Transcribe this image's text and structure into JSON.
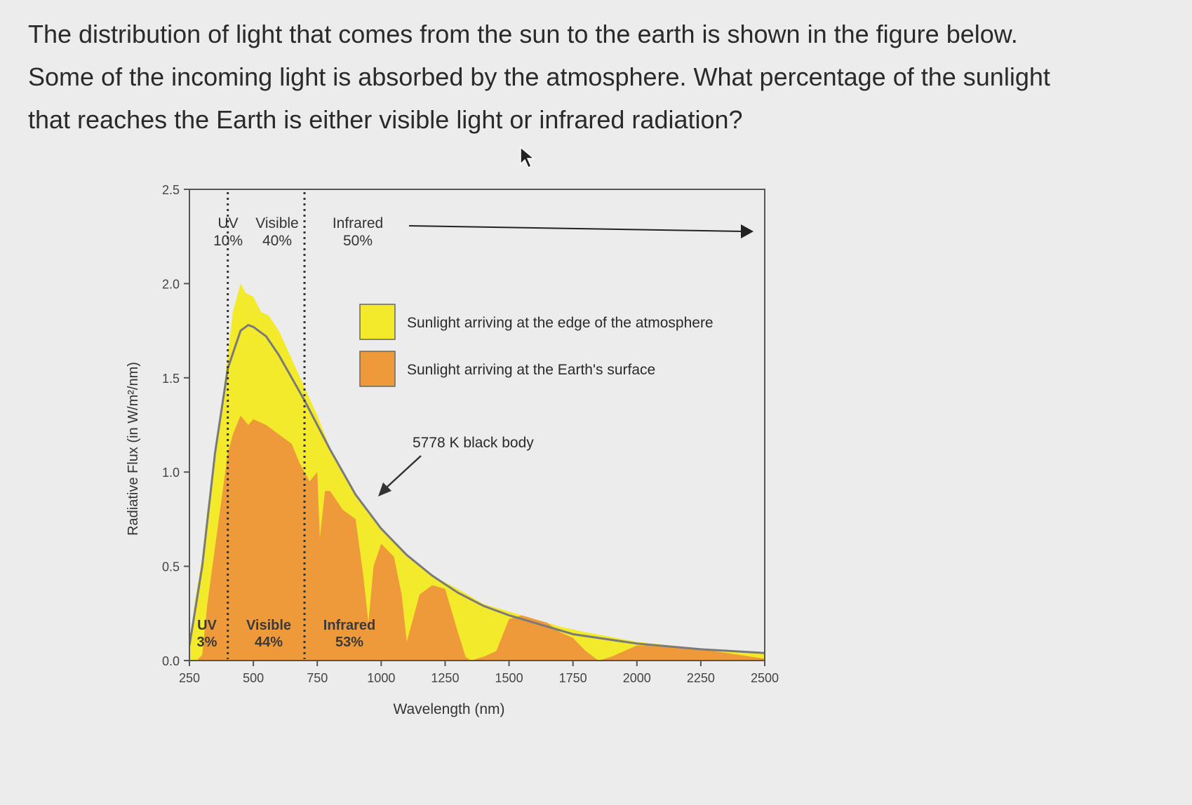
{
  "question": {
    "lines": [
      "The distribution of light that comes from the sun to the earth is shown in the figure below.",
      "Some of the incoming light is absorbed by the atmosphere. What percentage of the sunlight",
      "that reaches the Earth is either visible light or infrared radiation?"
    ]
  },
  "icons": {
    "cursor": "mouse-pointer-icon"
  },
  "colors": {
    "atmosphere_fill": "#f2ea2a",
    "surface_fill": "#ef9a3a",
    "blackbody_line": "#7a7a7a",
    "frame": "#555555"
  },
  "chart_data": {
    "type": "area",
    "xlabel": "Wavelength (nm)",
    "ylabel": "Radiative Flux (in W/m²/nm)",
    "xlim": [
      250,
      2500
    ],
    "ylim": [
      0,
      2.5
    ],
    "x_ticks": [
      "250",
      "500",
      "750",
      "1000",
      "1250",
      "1500",
      "1750",
      "2000",
      "2250",
      "2500"
    ],
    "y_ticks": [
      "0.0",
      "0.5",
      "1.0",
      "1.5",
      "2.0",
      "2.5"
    ],
    "legend": [
      {
        "name": "Sunlight arriving at the edge of the atmosphere",
        "color": "#f2ea2a"
      },
      {
        "name": "Sunlight arriving at the Earth's surface",
        "color": "#ef9a3a"
      }
    ],
    "legend_position": "upper-right",
    "annotations": {
      "blackbody": "5778 K black body",
      "top_bands": [
        {
          "label": "UV",
          "value": "10%"
        },
        {
          "label": "Visible",
          "value": "40%"
        },
        {
          "label": "Infrared",
          "value": "50%"
        }
      ],
      "bottom_bands": [
        {
          "label": "UV",
          "value": "3%"
        },
        {
          "label": "Visible",
          "value": "44%"
        },
        {
          "label": "Infrared",
          "value": "53%"
        }
      ]
    },
    "band_boundaries": [
      400,
      700
    ],
    "series": [
      {
        "name": "Sunlight arriving at the edge of the atmosphere",
        "x": [
          250,
          270,
          300,
          320,
          350,
          380,
          400,
          420,
          450,
          470,
          500,
          530,
          560,
          600,
          650,
          700,
          750,
          800,
          850,
          900,
          950,
          1000,
          1100,
          1200,
          1300,
          1400,
          1500,
          1600,
          1700,
          1800,
          2000,
          2200,
          2500
        ],
        "y": [
          0.08,
          0.3,
          0.55,
          0.8,
          1.05,
          1.4,
          1.62,
          1.85,
          2.0,
          1.95,
          1.93,
          1.85,
          1.83,
          1.75,
          1.6,
          1.45,
          1.3,
          1.13,
          1.0,
          0.87,
          0.78,
          0.7,
          0.55,
          0.45,
          0.38,
          0.3,
          0.26,
          0.22,
          0.18,
          0.15,
          0.1,
          0.07,
          0.04
        ]
      },
      {
        "name": "Sunlight arriving at the Earth's surface",
        "x": [
          250,
          280,
          300,
          320,
          350,
          380,
          400,
          420,
          450,
          480,
          500,
          550,
          600,
          650,
          680,
          700,
          720,
          750,
          760,
          780,
          800,
          850,
          900,
          930,
          950,
          970,
          1000,
          1050,
          1080,
          1100,
          1120,
          1150,
          1200,
          1250,
          1300,
          1330,
          1350,
          1400,
          1450,
          1500,
          1550,
          1600,
          1650,
          1700,
          1750,
          1800,
          1850,
          1900,
          1950,
          2000,
          2100,
          2200,
          2300,
          2400,
          2500
        ],
        "y": [
          0.0,
          0.0,
          0.03,
          0.3,
          0.6,
          0.9,
          1.1,
          1.2,
          1.3,
          1.25,
          1.28,
          1.25,
          1.2,
          1.15,
          1.05,
          1.0,
          0.95,
          1.0,
          0.65,
          0.9,
          0.9,
          0.8,
          0.75,
          0.45,
          0.2,
          0.5,
          0.62,
          0.55,
          0.35,
          0.1,
          0.2,
          0.35,
          0.4,
          0.38,
          0.15,
          0.02,
          0.0,
          0.02,
          0.05,
          0.22,
          0.24,
          0.22,
          0.2,
          0.15,
          0.12,
          0.05,
          0.0,
          0.02,
          0.05,
          0.08,
          0.08,
          0.07,
          0.05,
          0.03,
          0.01
        ]
      },
      {
        "name": "5778 K black body",
        "x": [
          250,
          300,
          350,
          400,
          450,
          480,
          500,
          550,
          600,
          650,
          700,
          750,
          800,
          900,
          1000,
          1100,
          1200,
          1300,
          1400,
          1500,
          1600,
          1750,
          2000,
          2250,
          2500
        ],
        "y": [
          0.08,
          0.5,
          1.1,
          1.55,
          1.75,
          1.78,
          1.77,
          1.72,
          1.62,
          1.5,
          1.38,
          1.25,
          1.12,
          0.88,
          0.7,
          0.56,
          0.45,
          0.36,
          0.29,
          0.24,
          0.2,
          0.14,
          0.09,
          0.06,
          0.04
        ]
      }
    ]
  }
}
